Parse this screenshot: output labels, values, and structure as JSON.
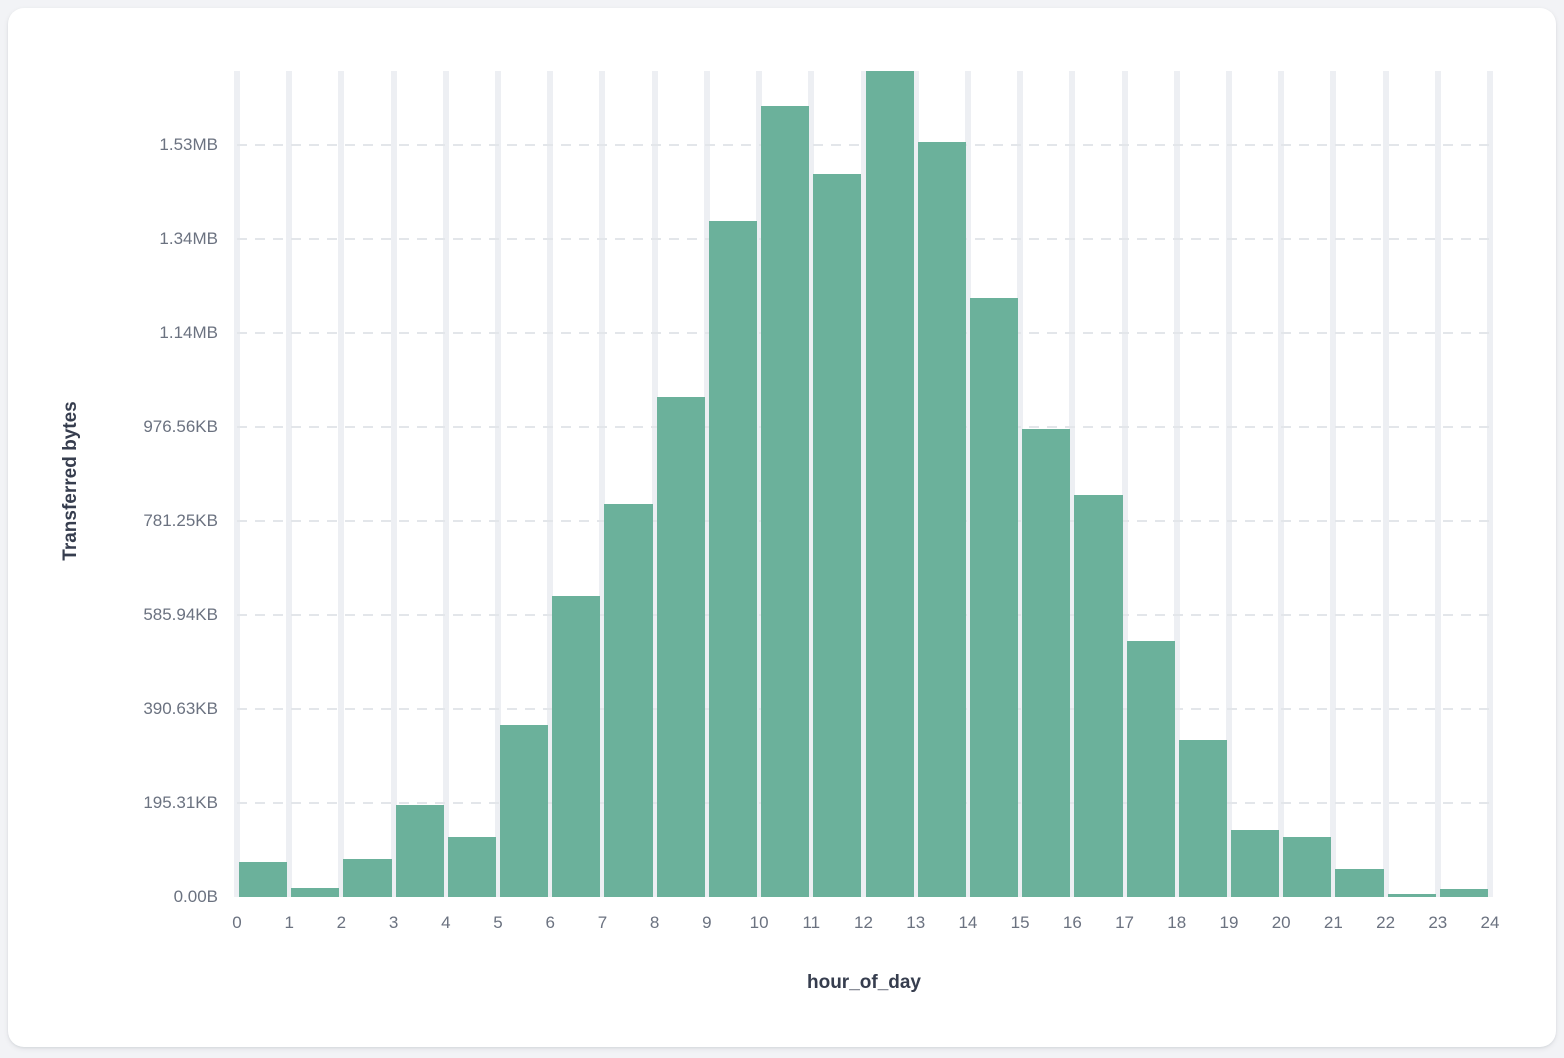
{
  "card": {
    "background": "#ffffff"
  },
  "chart_data": {
    "type": "bar",
    "title": "",
    "xlabel": "hour_of_day",
    "ylabel": "Transferred bytes",
    "x_tick_labels": [
      "0",
      "1",
      "2",
      "3",
      "4",
      "5",
      "6",
      "7",
      "8",
      "9",
      "10",
      "11",
      "12",
      "13",
      "14",
      "15",
      "16",
      "17",
      "18",
      "19",
      "20",
      "21",
      "22",
      "23",
      "24"
    ],
    "y_tick_labels": [
      "0.00B",
      "195.31KB",
      "390.63KB",
      "585.94KB",
      "781.25KB",
      "976.56KB",
      "1.14MB",
      "1.34MB",
      "1.53MB"
    ],
    "y_tick_step_bytes": 200000,
    "ylim_bytes": [
      0,
      1757000
    ],
    "xlim_hours": [
      0,
      24
    ],
    "categories_hour_bins": [
      "0-1",
      "1-2",
      "2-3",
      "3-4",
      "4-5",
      "5-6",
      "6-7",
      "7-8",
      "8-9",
      "9-10",
      "10-11",
      "11-12",
      "12-13",
      "13-14",
      "14-15",
      "15-16",
      "16-17",
      "17-18",
      "18-19",
      "19-20",
      "20-21",
      "21-22",
      "22-23",
      "23-24"
    ],
    "values_bytes": [
      74500,
      18500,
      81000,
      195500,
      128000,
      366000,
      641000,
      836000,
      1064500,
      1438000,
      1683000,
      1538300,
      1757000,
      1606400,
      1274500,
      995700,
      855300,
      545300,
      334000,
      142500,
      128000,
      59000,
      7000,
      16500
    ],
    "bar_color": "#6bb19b",
    "grid": {
      "vertical_gridlines": "solid",
      "horizontal_gridlines": "dashed",
      "vertical_gridline_color": "#edeff3",
      "horizontal_gridline_color": "#e3e6ea"
    },
    "legend": "none",
    "tick_label_color": "#6b7280",
    "axis_title_color": "#363d4e"
  }
}
